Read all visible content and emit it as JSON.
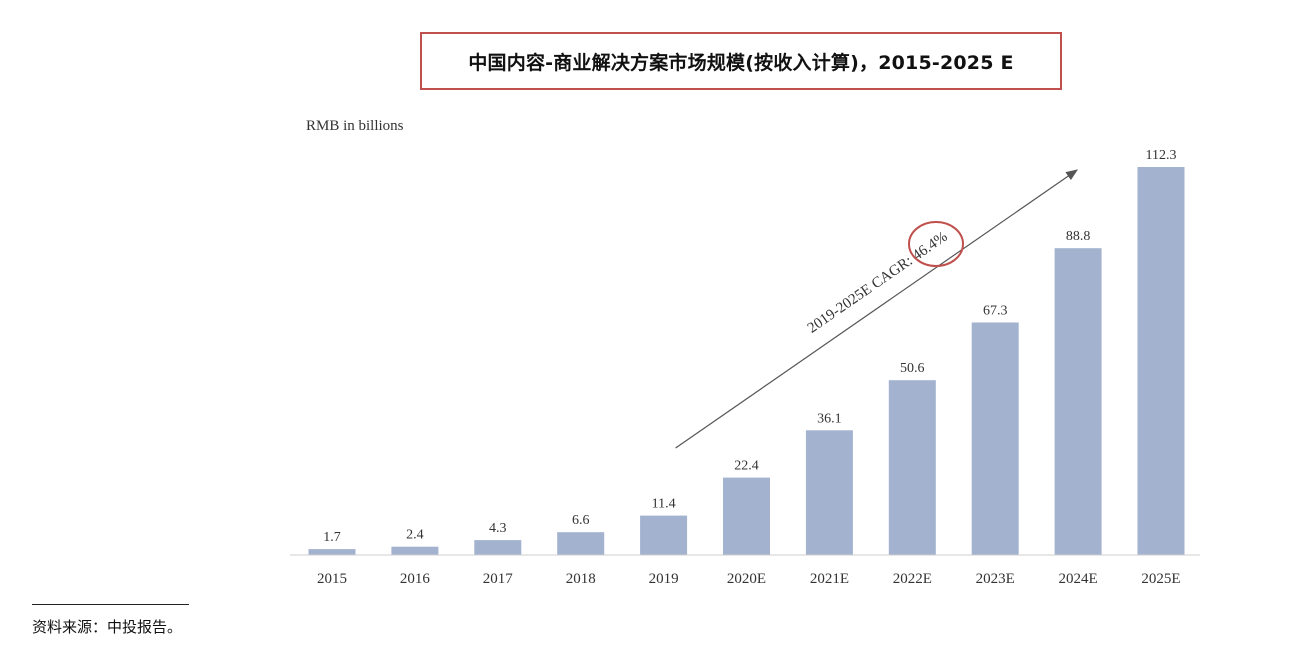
{
  "chart_data": {
    "type": "bar",
    "title": "中国内容-商业解决方案市场规模(按收入计算)，2015-2025 E",
    "unit_label": "RMB in billions",
    "categories": [
      "2015",
      "2016",
      "2017",
      "2018",
      "2019",
      "2020E",
      "2021E",
      "2022E",
      "2023E",
      "2024E",
      "2025E"
    ],
    "values": [
      1.7,
      2.4,
      4.3,
      6.6,
      11.4,
      22.4,
      36.1,
      50.6,
      67.3,
      88.8,
      112.3
    ],
    "value_labels": [
      "1.7",
      "2.4",
      "4.3",
      "6.6",
      "11.4",
      "22.4",
      "36.1",
      "50.6",
      "67.3",
      "88.8",
      "112.3"
    ],
    "ylim": [
      0,
      112.3
    ],
    "grid": false,
    "legend": "none",
    "bar_color": "#a2b2cf",
    "annotation": {
      "text": "2019-2025E CAGR: 46.4%",
      "highlight": "46.4%",
      "from_category": "2019",
      "to_category": "2025E",
      "arrow_color": "#555555",
      "circle_color": "#c0504d"
    }
  },
  "source": {
    "text": "资料来源：中投报告。"
  }
}
